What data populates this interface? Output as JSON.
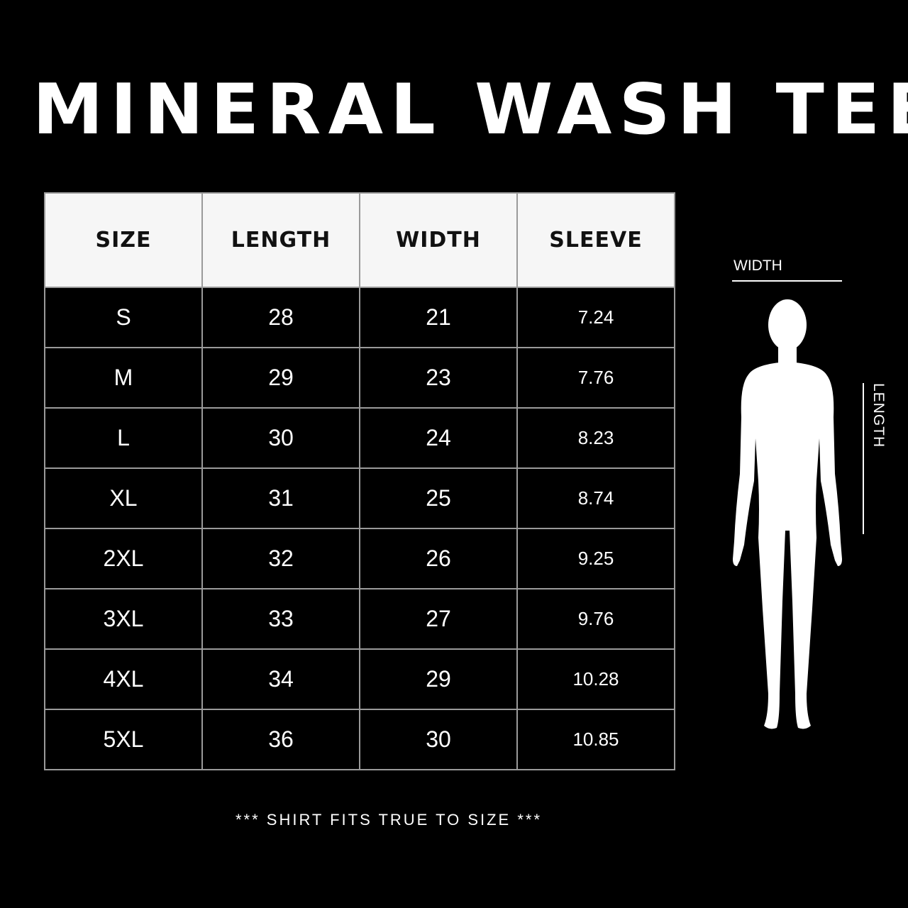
{
  "title": "MINERAL WASH TEE",
  "table": {
    "headers": [
      "SIZE",
      "LENGTH",
      "WIDTH",
      "SLEEVE"
    ],
    "rows": [
      [
        "S",
        "28",
        "21",
        "7.24"
      ],
      [
        "M",
        "29",
        "23",
        "7.76"
      ],
      [
        "L",
        "30",
        "24",
        "8.23"
      ],
      [
        "XL",
        "31",
        "25",
        "8.74"
      ],
      [
        "2XL",
        "32",
        "26",
        "9.25"
      ],
      [
        "3XL",
        "33",
        "27",
        "9.76"
      ],
      [
        "4XL",
        "34",
        "29",
        "10.28"
      ],
      [
        "5XL",
        "36",
        "30",
        "10.85"
      ]
    ]
  },
  "diagram": {
    "width_label": "WIDTH",
    "length_label": "LENGTH",
    "icon": "human-silhouette-icon"
  },
  "footer": "*** SHIRT FITS TRUE TO SIZE ***",
  "colors": {
    "background": "#000000",
    "header_bg": "#f6f6f6",
    "border": "#9a9a9a",
    "text": "#ffffff"
  }
}
